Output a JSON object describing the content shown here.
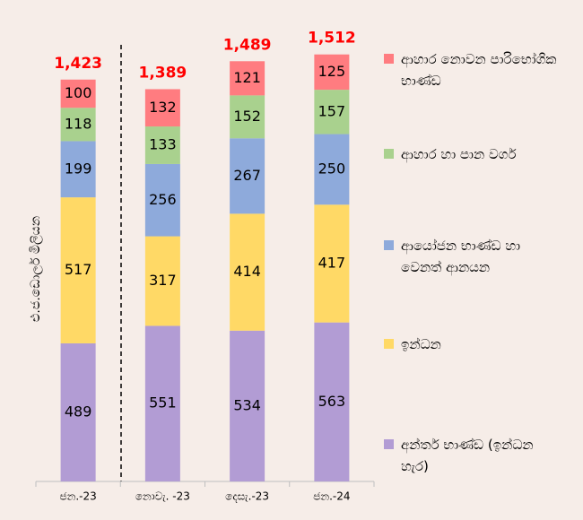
{
  "chart_data": {
    "type": "stacked_bar",
    "y_label": "එ.ජ.ඩොලර් මිලියන",
    "categories": [
      "ජන.-23",
      "නොවැ. -23",
      "දෙසැ.-23",
      "ජන.-24"
    ],
    "series": [
      {
        "name": "අන්තර් භාණ්ඩ (ඉන්ධන හැර)",
        "color": "#b29cd4",
        "values": [
          489,
          551,
          534,
          563
        ]
      },
      {
        "name": "ඉන්ධන",
        "color": "#ffd966",
        "values": [
          517,
          317,
          414,
          417
        ]
      },
      {
        "name": "ආයෝජන භාණ්ඩ හා වෙනත් ආනයන",
        "color": "#8eaadb",
        "values": [
          199,
          256,
          267,
          250
        ]
      },
      {
        "name": "ආහාර හා පාන වර්ග",
        "color": "#a9d18e",
        "values": [
          118,
          133,
          152,
          157
        ]
      },
      {
        "name": "ආහාර නොවන පාරිභෝගික භාණ්ඩ",
        "color": "#ff7c80",
        "values": [
          100,
          132,
          121,
          125
        ]
      }
    ],
    "totals": {
      "values": [
        1423,
        1389,
        1489,
        1512
      ],
      "value_labels": [
        "1,423",
        "1,389",
        "1,489",
        "1,512"
      ],
      "color": "#ff0000"
    },
    "ylim": [
      0,
      1600
    ]
  }
}
